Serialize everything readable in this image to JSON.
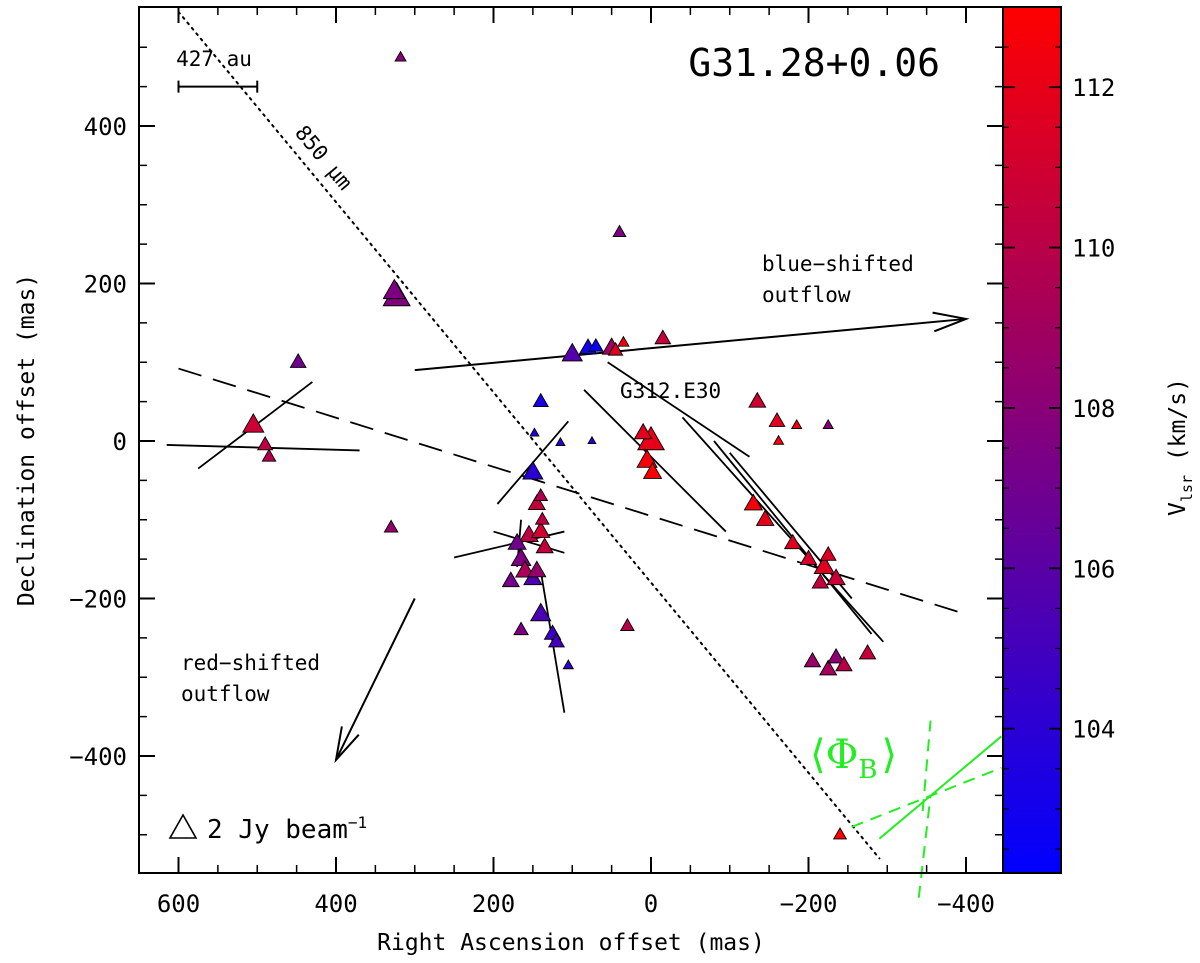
{
  "chart_data": {
    "type": "scatter",
    "title": "G31.28+0.06",
    "xlabel": "Right Ascension offset (mas)",
    "ylabel": "Declination offset (mas)",
    "xlim": [
      650,
      -450
    ],
    "ylim": [
      -550,
      560
    ],
    "xticks": [
      600,
      400,
      200,
      0,
      -200,
      -400
    ],
    "xtick_labels": [
      "600",
      "400",
      "200",
      "0",
      "−200",
      "−400"
    ],
    "yticks": [
      400,
      200,
      0,
      -200,
      -400
    ],
    "ytick_labels": [
      "400",
      "200",
      "0",
      "−200",
      "−400"
    ],
    "colorbar": {
      "label": "V",
      "label_sub": "lsr",
      "label_unit": " (km/s)",
      "range": [
        102.2,
        113.0
      ],
      "ticks": [
        104,
        106,
        108,
        110,
        112
      ],
      "tick_labels": [
        "104",
        "106",
        "108",
        "110",
        "112"
      ],
      "colors": [
        "#0000ff",
        "#ff0000"
      ]
    },
    "scale_bar": {
      "label": "427 au",
      "from_x": 600,
      "to_x": 500,
      "y": 450
    },
    "legend": {
      "triangle_flux_jy": 2,
      "text_main": "2 Jy beam",
      "text_sup": "−1",
      "position": "bottom-left"
    },
    "core_label": "G312.E30",
    "annotations": {
      "dotted_line_label": "850 μm",
      "blue_lobe": [
        "blue−shifted",
        "outflow"
      ],
      "red_lobe": [
        "red−shifted",
        "outflow"
      ]
    },
    "field_label": {
      "phi": "Φ",
      "sub": "B",
      "left": "⟨",
      "right": "⟩"
    },
    "dotted_line": {
      "x1": 600,
      "y1": 545,
      "x2": -290,
      "y2": -530
    },
    "dashed_line": {
      "x1": 600,
      "y1": 92,
      "x2": -400,
      "y2": -220
    },
    "arrows": [
      {
        "x1": 300,
        "y1": 90,
        "x2": -400,
        "y2": 155,
        "direction": "blue"
      },
      {
        "x1": 300,
        "y1": -200,
        "x2": 400,
        "y2": -405,
        "direction": "red"
      }
    ],
    "polarization_vectors": [
      {
        "x1": 615,
        "y1": -5,
        "x2": 370,
        "y2": -12
      },
      {
        "x1": 575,
        "y1": -35,
        "x2": 430,
        "y2": 75
      },
      {
        "x1": 195,
        "y1": -80,
        "x2": 105,
        "y2": 25
      },
      {
        "x1": 250,
        "y1": -148,
        "x2": 110,
        "y2": -115
      },
      {
        "x1": 200,
        "y1": -115,
        "x2": 110,
        "y2": -142
      },
      {
        "x1": 140,
        "y1": -165,
        "x2": 110,
        "y2": -345
      },
      {
        "x1": 170,
        "y1": -160,
        "x2": 165,
        "y2": -100
      },
      {
        "x1": 85,
        "y1": 65,
        "x2": -95,
        "y2": -115
      },
      {
        "x1": 55,
        "y1": 100,
        "x2": -125,
        "y2": -20
      },
      {
        "x1": -40,
        "y1": 30,
        "x2": -295,
        "y2": -255
      },
      {
        "x1": -80,
        "y1": 0,
        "x2": -280,
        "y2": -245
      },
      {
        "x1": -100,
        "y1": -15,
        "x2": -255,
        "y2": -200
      }
    ],
    "green_field": [
      {
        "x1": -290,
        "y1": -505,
        "x2": -445,
        "y2": -375
      },
      {
        "x1": -345,
        "y1": -470,
        "x2": -355,
        "y2": -355
      },
      {
        "x1": -255,
        "y1": -490,
        "x2": -445,
        "y2": -415
      },
      {
        "x1": -340,
        "y1": -580,
        "x2": -355,
        "y2": -450
      }
    ],
    "maser_spots": [
      {
        "x": 318,
        "y": 487,
        "flux": 0.6,
        "vlsr": 107.9
      },
      {
        "x": 323,
        "y": 183,
        "flux": 3.6,
        "vlsr": 107.7
      },
      {
        "x": 326,
        "y": 190,
        "flux": 2.4,
        "vlsr": 107.5
      },
      {
        "x": 448,
        "y": 100,
        "flux": 1.2,
        "vlsr": 106.9
      },
      {
        "x": 505,
        "y": 20,
        "flux": 2.2,
        "vlsr": 110.8
      },
      {
        "x": 490,
        "y": -5,
        "flux": 1.1,
        "vlsr": 110.2
      },
      {
        "x": 485,
        "y": -20,
        "flux": 0.9,
        "vlsr": 109.8
      },
      {
        "x": 330,
        "y": -110,
        "flux": 0.9,
        "vlsr": 108.5
      },
      {
        "x": 148,
        "y": 10,
        "flux": 0.4,
        "vlsr": 103.5
      },
      {
        "x": 140,
        "y": 50,
        "flux": 1.1,
        "vlsr": 103.2
      },
      {
        "x": 150,
        "y": -40,
        "flux": 2.0,
        "vlsr": 104.0
      },
      {
        "x": 115,
        "y": -2,
        "flux": 0.4,
        "vlsr": 104.0
      },
      {
        "x": 75,
        "y": 0,
        "flux": 0.3,
        "vlsr": 103.6
      },
      {
        "x": 100,
        "y": 110,
        "flux": 2.0,
        "vlsr": 105.8
      },
      {
        "x": 80,
        "y": 118,
        "flux": 1.4,
        "vlsr": 103.0
      },
      {
        "x": 70,
        "y": 120,
        "flux": 1.0,
        "vlsr": 102.6
      },
      {
        "x": 50,
        "y": 118,
        "flux": 1.7,
        "vlsr": 109.0
      },
      {
        "x": 45,
        "y": 115,
        "flux": 1.0,
        "vlsr": 111.5
      },
      {
        "x": 35,
        "y": 125,
        "flux": 0.6,
        "vlsr": 112.4
      },
      {
        "x": 40,
        "y": 265,
        "flux": 0.8,
        "vlsr": 107.6
      },
      {
        "x": -15,
        "y": 130,
        "flux": 1.2,
        "vlsr": 110.6
      },
      {
        "x": 0,
        "y": 0,
        "flux": 3.5,
        "vlsr": 112.0
      },
      {
        "x": 5,
        "y": -25,
        "flux": 2.0,
        "vlsr": 112.6
      },
      {
        "x": -2,
        "y": -40,
        "flux": 1.6,
        "vlsr": 112.8
      },
      {
        "x": 10,
        "y": 10,
        "flux": 1.5,
        "vlsr": 111.8
      },
      {
        "x": -135,
        "y": 50,
        "flux": 1.4,
        "vlsr": 110.9
      },
      {
        "x": -160,
        "y": 25,
        "flux": 1.2,
        "vlsr": 111.8
      },
      {
        "x": -185,
        "y": 20,
        "flux": 0.5,
        "vlsr": 112.4
      },
      {
        "x": -162,
        "y": 0,
        "flux": 0.5,
        "vlsr": 112.6
      },
      {
        "x": -225,
        "y": 20,
        "flux": 0.5,
        "vlsr": 108.0
      },
      {
        "x": -130,
        "y": -80,
        "flux": 1.6,
        "vlsr": 112.6
      },
      {
        "x": -145,
        "y": -100,
        "flux": 1.5,
        "vlsr": 112.0
      },
      {
        "x": -180,
        "y": -130,
        "flux": 1.3,
        "vlsr": 111.5
      },
      {
        "x": -200,
        "y": -150,
        "flux": 1.3,
        "vlsr": 111.2
      },
      {
        "x": -220,
        "y": -160,
        "flux": 2.0,
        "vlsr": 111.6
      },
      {
        "x": -235,
        "y": -175,
        "flux": 1.6,
        "vlsr": 110.8
      },
      {
        "x": -215,
        "y": -180,
        "flux": 1.3,
        "vlsr": 110.4
      },
      {
        "x": -225,
        "y": -145,
        "flux": 1.2,
        "vlsr": 111.4
      },
      {
        "x": -205,
        "y": -280,
        "flux": 1.3,
        "vlsr": 108.6
      },
      {
        "x": -225,
        "y": -290,
        "flux": 1.4,
        "vlsr": 109.2
      },
      {
        "x": -235,
        "y": -275,
        "flux": 1.3,
        "vlsr": 108.2
      },
      {
        "x": -245,
        "y": -285,
        "flux": 1.3,
        "vlsr": 110.0
      },
      {
        "x": -275,
        "y": -270,
        "flux": 1.3,
        "vlsr": 110.6
      },
      {
        "x": -240,
        "y": -500,
        "flux": 0.8,
        "vlsr": 112.9
      },
      {
        "x": 30,
        "y": -235,
        "flux": 0.9,
        "vlsr": 109.9
      },
      {
        "x": 105,
        "y": -285,
        "flux": 0.5,
        "vlsr": 104.2
      },
      {
        "x": 140,
        "y": -220,
        "flux": 2.0,
        "vlsr": 105.4
      },
      {
        "x": 125,
        "y": -245,
        "flux": 1.3,
        "vlsr": 104.6
      },
      {
        "x": 120,
        "y": -255,
        "flux": 1.2,
        "vlsr": 105.1
      },
      {
        "x": 165,
        "y": -240,
        "flux": 1.0,
        "vlsr": 107.5
      },
      {
        "x": 150,
        "y": -175,
        "flux": 1.6,
        "vlsr": 105.5
      },
      {
        "x": 145,
        "y": -165,
        "flux": 1.6,
        "vlsr": 108.5
      },
      {
        "x": 165,
        "y": -150,
        "flux": 1.9,
        "vlsr": 107.5
      },
      {
        "x": 170,
        "y": -130,
        "flux": 1.6,
        "vlsr": 107.0
      },
      {
        "x": 160,
        "y": -165,
        "flux": 1.7,
        "vlsr": 109.4
      },
      {
        "x": 178,
        "y": -178,
        "flux": 1.4,
        "vlsr": 107.2
      },
      {
        "x": 155,
        "y": -120,
        "flux": 1.7,
        "vlsr": 110.2
      },
      {
        "x": 140,
        "y": -115,
        "flux": 1.6,
        "vlsr": 111.0
      },
      {
        "x": 135,
        "y": -135,
        "flux": 1.4,
        "vlsr": 110.4
      },
      {
        "x": 145,
        "y": -80,
        "flux": 1.4,
        "vlsr": 110.5
      },
      {
        "x": 140,
        "y": -70,
        "flux": 0.9,
        "vlsr": 109.6
      },
      {
        "x": 138,
        "y": -100,
        "flux": 0.9,
        "vlsr": 110.2
      }
    ]
  }
}
